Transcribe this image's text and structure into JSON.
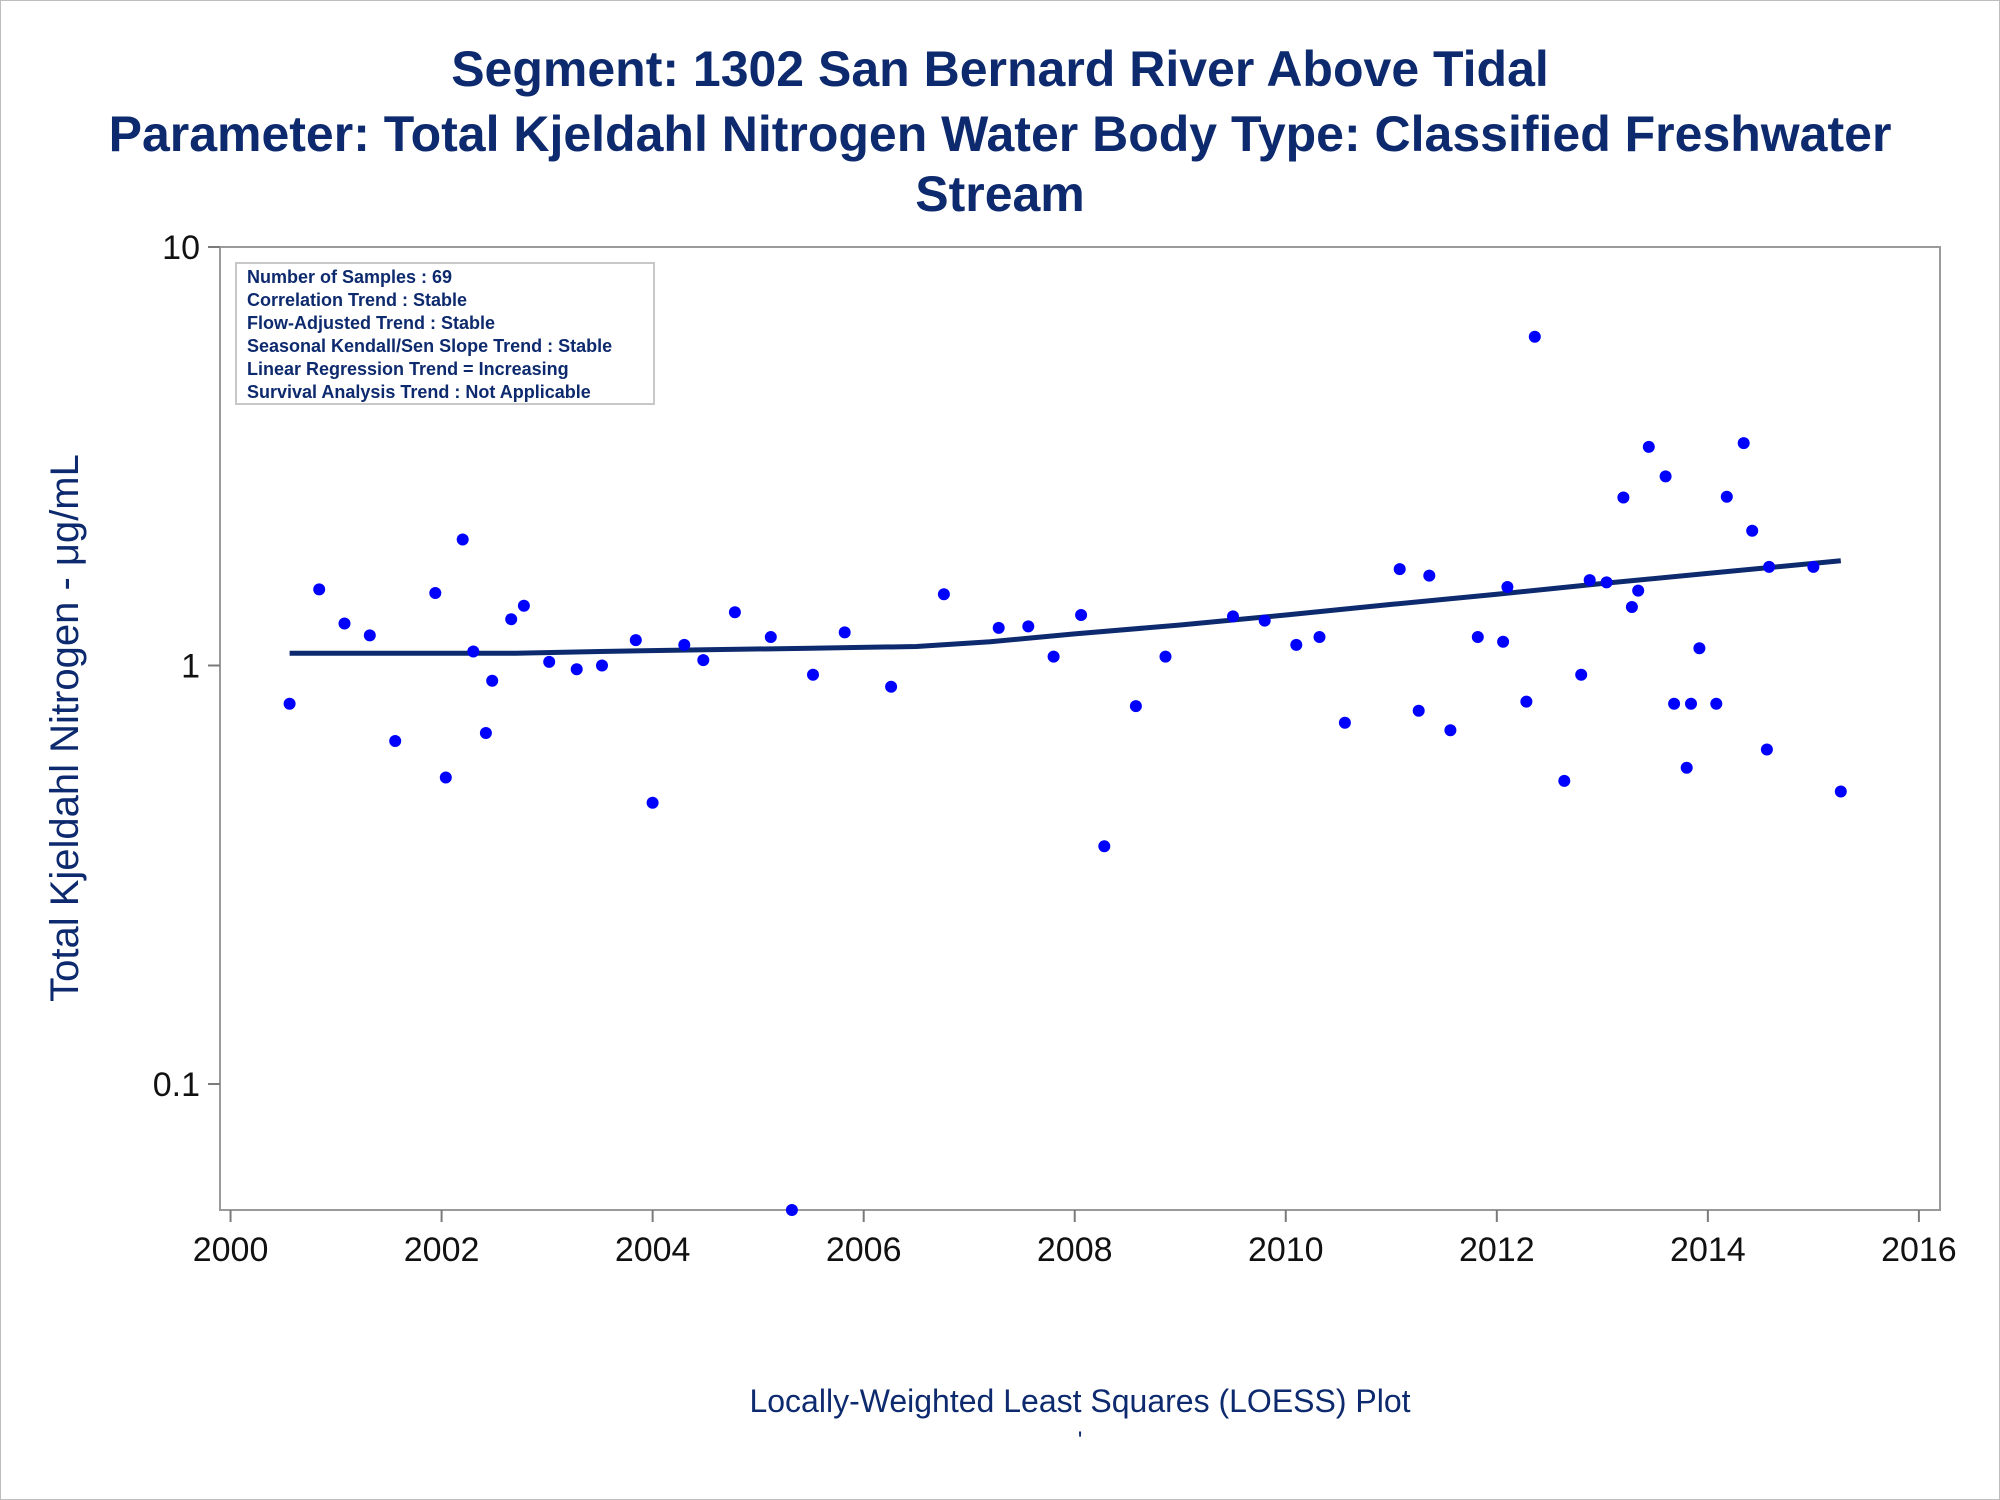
{
  "chart_data": {
    "type": "scatter",
    "title": "Segment: 1302  San Bernard River Above Tidal",
    "subtitle_lines": [
      "Parameter: Total Kjeldahl Nitrogen   Water Body Type: Classified Freshwater",
      "Stream"
    ],
    "ylabel": "Total Kjeldahl Nitrogen -  μg/mL",
    "xlabel": "Locally-Weighted Least Squares (LOESS) Plot",
    "footnote": "'",
    "y_scale": "log",
    "xlim": [
      1999.9,
      2016.2
    ],
    "ylim": [
      0.05,
      10
    ],
    "x_ticks": [
      2000,
      2002,
      2004,
      2006,
      2008,
      2010,
      2012,
      2014,
      2016
    ],
    "x_tick_labels": [
      "2000",
      "2002",
      "2004",
      "2006",
      "2008",
      "2010",
      "2012",
      "2014",
      "2016"
    ],
    "y_ticks": [
      0.1,
      1,
      10
    ],
    "y_tick_labels": [
      "0.1",
      "1",
      "10"
    ],
    "grid": false,
    "legend_position": "top-left",
    "info_box": [
      "Number of Samples : 69",
      "Correlation Trend : Stable",
      "Flow-Adjusted Trend : Stable",
      "Seasonal Kendall/Sen Slope Trend : Stable",
      "Linear Regression Trend = Increasing",
      "Survival Analysis Trend : Not Applicable"
    ],
    "points_color": "#0000ff",
    "line_color": "#0e2a6e",
    "series": [
      {
        "points": [
          [
            2000.56,
            0.81
          ],
          [
            2000.84,
            1.52
          ],
          [
            2001.08,
            1.26
          ],
          [
            2001.32,
            1.18
          ],
          [
            2001.56,
            0.66
          ],
          [
            2001.94,
            1.49
          ],
          [
            2002.04,
            0.54
          ],
          [
            2002.2,
            2.0
          ],
          [
            2002.3,
            1.08
          ],
          [
            2002.42,
            0.69
          ],
          [
            2002.48,
            0.92
          ],
          [
            2002.66,
            1.29
          ],
          [
            2002.78,
            1.39
          ],
          [
            2003.02,
            1.02
          ],
          [
            2003.28,
            0.98
          ],
          [
            2003.52,
            1.0
          ],
          [
            2003.84,
            1.15
          ],
          [
            2004.0,
            0.47
          ],
          [
            2004.3,
            1.12
          ],
          [
            2004.48,
            1.03
          ],
          [
            2004.78,
            1.34
          ],
          [
            2005.12,
            1.17
          ],
          [
            2005.32,
            0.05
          ],
          [
            2005.52,
            0.95
          ],
          [
            2005.82,
            1.2
          ],
          [
            2006.26,
            0.89
          ],
          [
            2006.76,
            1.48
          ],
          [
            2007.28,
            1.23
          ],
          [
            2007.56,
            1.24
          ],
          [
            2007.8,
            1.05
          ],
          [
            2008.06,
            1.32
          ],
          [
            2008.28,
            0.37
          ],
          [
            2008.58,
            0.8
          ],
          [
            2008.86,
            1.05
          ],
          [
            2009.5,
            1.31
          ],
          [
            2009.8,
            1.28
          ],
          [
            2010.1,
            1.12
          ],
          [
            2010.32,
            1.17
          ],
          [
            2010.56,
            0.73
          ],
          [
            2011.08,
            1.7
          ],
          [
            2011.26,
            0.78
          ],
          [
            2011.36,
            1.64
          ],
          [
            2011.56,
            0.7
          ],
          [
            2011.82,
            1.17
          ],
          [
            2012.06,
            1.14
          ],
          [
            2012.1,
            1.54
          ],
          [
            2012.28,
            0.82
          ],
          [
            2012.36,
            6.1
          ],
          [
            2012.64,
            0.53
          ],
          [
            2012.8,
            0.95
          ],
          [
            2012.88,
            1.6
          ],
          [
            2013.04,
            1.58
          ],
          [
            2013.2,
            2.52
          ],
          [
            2013.28,
            1.38
          ],
          [
            2013.34,
            1.51
          ],
          [
            2013.44,
            3.33
          ],
          [
            2013.6,
            2.83
          ],
          [
            2013.68,
            0.81
          ],
          [
            2013.8,
            0.57
          ],
          [
            2013.84,
            0.81
          ],
          [
            2013.92,
            1.1
          ],
          [
            2014.08,
            0.81
          ],
          [
            2014.18,
            2.53
          ],
          [
            2014.34,
            3.4
          ],
          [
            2014.42,
            2.1
          ],
          [
            2014.56,
            0.63
          ],
          [
            2014.58,
            1.72
          ],
          [
            2015.0,
            1.72
          ],
          [
            2015.26,
            0.5
          ]
        ]
      },
      {
        "line": [
          [
            2000.56,
            1.07
          ],
          [
            2001.5,
            1.07
          ],
          [
            2002.7,
            1.07
          ],
          [
            2003.5,
            1.08
          ],
          [
            2004.5,
            1.09
          ],
          [
            2005.5,
            1.1
          ],
          [
            2006.5,
            1.11
          ],
          [
            2007.2,
            1.14
          ],
          [
            2008.0,
            1.19
          ],
          [
            2009.0,
            1.25
          ],
          [
            2010.0,
            1.32
          ],
          [
            2011.0,
            1.4
          ],
          [
            2012.0,
            1.48
          ],
          [
            2013.0,
            1.57
          ],
          [
            2014.0,
            1.66
          ],
          [
            2015.26,
            1.78
          ]
        ]
      }
    ]
  }
}
